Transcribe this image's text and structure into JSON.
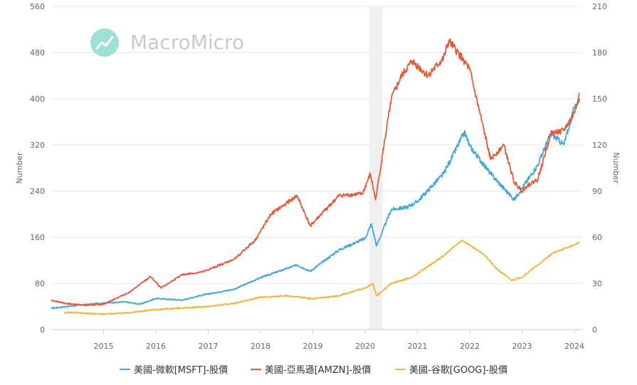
{
  "chart_data": {
    "type": "line",
    "watermark": "MacroMicro",
    "ylabel_left": "Number",
    "ylabel_right": "Number",
    "ylim_left": [
      0,
      560
    ],
    "ylim_right": [
      0,
      210
    ],
    "yticks_left": [
      0,
      80,
      160,
      240,
      320,
      400,
      480,
      560
    ],
    "yticks_right": [
      0,
      30,
      60,
      90,
      120,
      150,
      180,
      210
    ],
    "x_range": [
      2014.0,
      2024.15
    ],
    "xticks": [
      2015,
      2016,
      2017,
      2018,
      2019,
      2020,
      2021,
      2022,
      2023,
      2024
    ],
    "shaded_region": [
      2020.08,
      2020.33
    ],
    "grid": "horizontal",
    "legend_position": "bottom",
    "series": [
      {
        "name": "美國-微軟[MSFT]-股價",
        "color": "#41a8d6",
        "axis": "left",
        "points": [
          [
            2014.0,
            37
          ],
          [
            2014.5,
            42
          ],
          [
            2015.0,
            46
          ],
          [
            2015.4,
            48
          ],
          [
            2015.7,
            44
          ],
          [
            2016.0,
            54
          ],
          [
            2016.5,
            51
          ],
          [
            2016.9,
            60
          ],
          [
            2017.5,
            70
          ],
          [
            2018.0,
            90
          ],
          [
            2018.7,
            112
          ],
          [
            2018.95,
            101
          ],
          [
            2019.5,
            138
          ],
          [
            2020.0,
            158
          ],
          [
            2020.12,
            183
          ],
          [
            2020.22,
            145
          ],
          [
            2020.5,
            208
          ],
          [
            2020.8,
            212
          ],
          [
            2021.0,
            222
          ],
          [
            2021.5,
            270
          ],
          [
            2021.9,
            342
          ],
          [
            2022.0,
            318
          ],
          [
            2022.4,
            270
          ],
          [
            2022.75,
            235
          ],
          [
            2022.85,
            225
          ],
          [
            2023.0,
            245
          ],
          [
            2023.3,
            285
          ],
          [
            2023.55,
            340
          ],
          [
            2023.8,
            320
          ],
          [
            2024.0,
            385
          ],
          [
            2024.1,
            400
          ]
        ]
      },
      {
        "name": "美國-亞馬遜[AMZN]-股價",
        "color": "#e35b3b",
        "axis": "left",
        "points": [
          [
            2014.0,
            51
          ],
          [
            2014.3,
            45
          ],
          [
            2014.7,
            42
          ],
          [
            2015.0,
            44
          ],
          [
            2015.5,
            65
          ],
          [
            2015.9,
            92
          ],
          [
            2016.1,
            72
          ],
          [
            2016.5,
            95
          ],
          [
            2016.9,
            100
          ],
          [
            2017.5,
            122
          ],
          [
            2017.9,
            155
          ],
          [
            2018.2,
            200
          ],
          [
            2018.7,
            232
          ],
          [
            2018.95,
            180
          ],
          [
            2019.5,
            232
          ],
          [
            2019.95,
            235
          ],
          [
            2020.1,
            270
          ],
          [
            2020.2,
            225
          ],
          [
            2020.5,
            400
          ],
          [
            2020.7,
            440
          ],
          [
            2020.9,
            465
          ],
          [
            2021.2,
            440
          ],
          [
            2021.5,
            470
          ],
          [
            2021.6,
            500
          ],
          [
            2021.9,
            465
          ],
          [
            2022.0,
            450
          ],
          [
            2022.4,
            295
          ],
          [
            2022.65,
            320
          ],
          [
            2022.85,
            255
          ],
          [
            2023.0,
            240
          ],
          [
            2023.1,
            250
          ],
          [
            2023.3,
            260
          ],
          [
            2023.55,
            340
          ],
          [
            2023.8,
            345
          ],
          [
            2024.0,
            375
          ],
          [
            2024.1,
            410
          ]
        ]
      },
      {
        "name": "美國-谷歌[GOOG]-股價",
        "color": "#f2b440",
        "axis": "right",
        "points": [
          [
            2014.25,
            11
          ],
          [
            2014.5,
            11
          ],
          [
            2015.0,
            10
          ],
          [
            2015.5,
            11
          ],
          [
            2016.0,
            13
          ],
          [
            2016.5,
            14
          ],
          [
            2017.0,
            15
          ],
          [
            2017.5,
            17
          ],
          [
            2018.0,
            21
          ],
          [
            2018.5,
            22
          ],
          [
            2019.0,
            20
          ],
          [
            2019.5,
            22
          ],
          [
            2020.0,
            27
          ],
          [
            2020.15,
            30
          ],
          [
            2020.22,
            22
          ],
          [
            2020.5,
            30
          ],
          [
            2020.9,
            34
          ],
          [
            2021.5,
            48
          ],
          [
            2021.85,
            58
          ],
          [
            2022.0,
            55
          ],
          [
            2022.3,
            48
          ],
          [
            2022.5,
            40
          ],
          [
            2022.8,
            32
          ],
          [
            2023.0,
            34
          ],
          [
            2023.3,
            42
          ],
          [
            2023.6,
            50
          ],
          [
            2024.0,
            55
          ],
          [
            2024.1,
            57
          ]
        ]
      }
    ]
  }
}
